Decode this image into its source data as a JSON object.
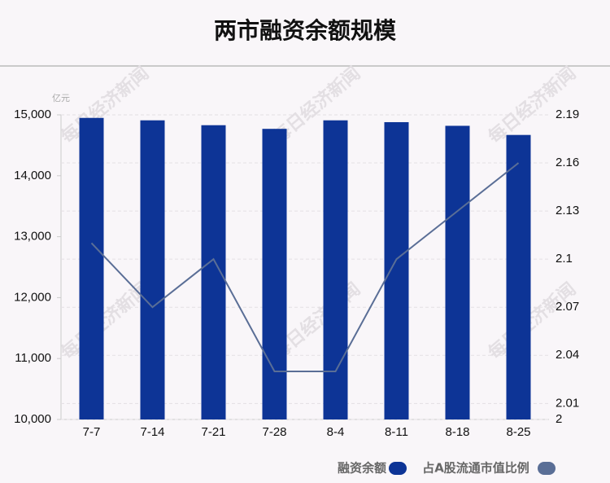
{
  "chart_data": {
    "type": "bar",
    "title": "两市融资余额规模",
    "y_unit": "亿元",
    "watermark": "每日经济新闻",
    "categories": [
      "7-7",
      "7-14",
      "7-21",
      "7-28",
      "8-4",
      "8-11",
      "8-18",
      "8-25"
    ],
    "series": [
      {
        "name": "融资余额",
        "type": "bar",
        "color": "#0d3496",
        "values": [
          14950,
          14910,
          14830,
          14770,
          14910,
          14880,
          14820,
          14670
        ]
      },
      {
        "name": "占A股流通市值比例",
        "type": "line",
        "axis": "y2",
        "color": "#5a6e96",
        "values": [
          2.11,
          2.07,
          2.1,
          2.03,
          2.03,
          2.1,
          2.13,
          2.16
        ]
      }
    ],
    "ylim": [
      10000,
      15000
    ],
    "yticks": [
      {
        "value": 10000,
        "label": "10,000"
      },
      {
        "value": 11000,
        "label": "11,000"
      },
      {
        "value": 12000,
        "label": "12,000"
      },
      {
        "value": 13000,
        "label": "13,000"
      },
      {
        "value": 14000,
        "label": "14,000"
      },
      {
        "value": 15000,
        "label": "15,000"
      }
    ],
    "y2lim": [
      2,
      2.19
    ],
    "y2ticks": [
      2,
      2.01,
      2.04,
      2.07,
      2.1,
      2.13,
      2.16,
      2.19
    ],
    "grid": true
  }
}
